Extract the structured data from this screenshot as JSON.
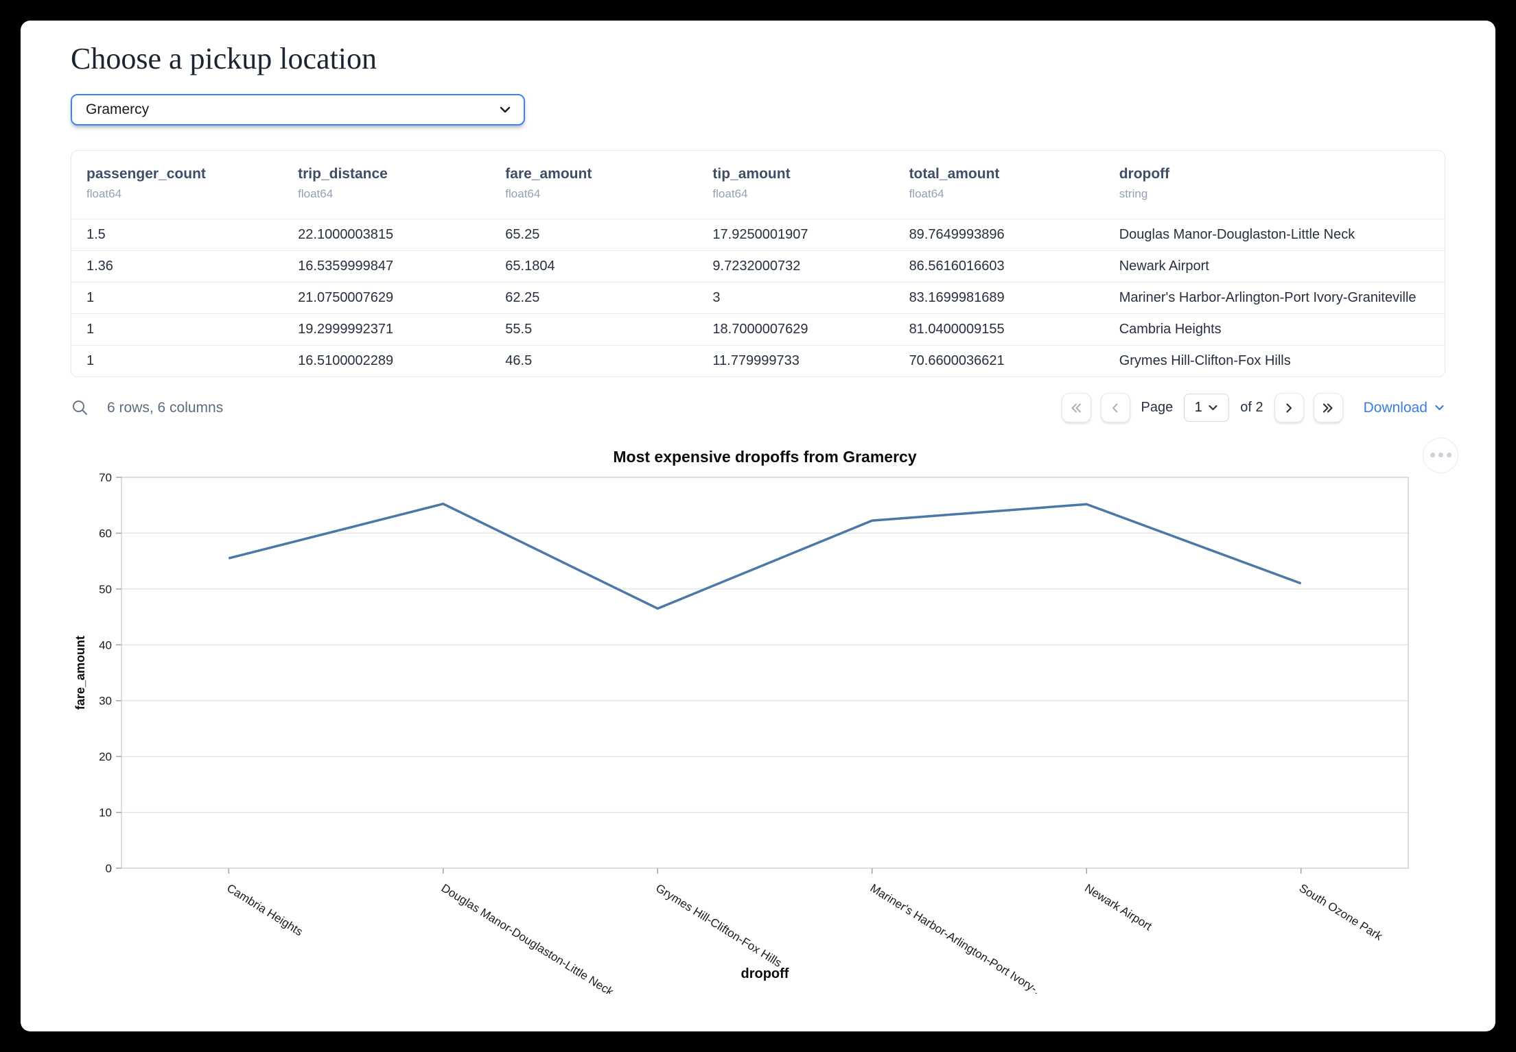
{
  "header": {
    "title": "Choose a pickup location"
  },
  "pickup_select": {
    "value": "Gramercy"
  },
  "table": {
    "columns": [
      {
        "name": "passenger_count",
        "dtype": "float64"
      },
      {
        "name": "trip_distance",
        "dtype": "float64"
      },
      {
        "name": "fare_amount",
        "dtype": "float64"
      },
      {
        "name": "tip_amount",
        "dtype": "float64"
      },
      {
        "name": "total_amount",
        "dtype": "float64"
      },
      {
        "name": "dropoff",
        "dtype": "string"
      }
    ],
    "rows": [
      [
        "1.5",
        "22.1000003815",
        "65.25",
        "17.9250001907",
        "89.7649993896",
        "Douglas Manor-Douglaston-Little Neck"
      ],
      [
        "1.36",
        "16.5359999847",
        "65.1804",
        "9.7232000732",
        "86.5616016603",
        "Newark Airport"
      ],
      [
        "1",
        "21.0750007629",
        "62.25",
        "3",
        "83.1699981689",
        "Mariner's Harbor-Arlington-Port Ivory-Graniteville"
      ],
      [
        "1",
        "19.2999992371",
        "55.5",
        "18.7000007629",
        "81.0400009155",
        "Cambria Heights"
      ],
      [
        "1",
        "16.5100002289",
        "46.5",
        "11.779999733",
        "70.6600036621",
        "Grymes Hill-Clifton-Fox Hills"
      ]
    ],
    "summary": "6 rows, 6 columns"
  },
  "pagination": {
    "page_label": "Page",
    "current_page": "1",
    "of_text": "of 2",
    "download_label": "Download"
  },
  "colors": {
    "accent_blue": "#3e83f0",
    "link_blue": "#3a7ce0",
    "line_blue": "#4c78a8"
  },
  "chart_data": {
    "type": "line",
    "title": "Most expensive dropoffs from Gramercy",
    "xlabel": "dropoff",
    "ylabel": "fare_amount",
    "categories": [
      "Cambria Heights",
      "Douglas Manor-Douglaston-Little Neck",
      "Grymes Hill-Clifton-Fox Hills",
      "Mariner's Harbor-Arlington-Port Ivory-Graniteville",
      "Newark Airport",
      "South Ozone Park"
    ],
    "axis_labels": [
      "Cambria Heights",
      "Douglas Manor-Douglaston-Little Neck",
      "Grymes Hill-Clifton-Fox Hills",
      "Mariner's Harbor-Arlington-Port Ivory-…",
      "Newark Airport",
      "South Ozone Park"
    ],
    "values": [
      55.5,
      65.25,
      46.5,
      62.25,
      65.1804,
      51
    ],
    "ylim": [
      0,
      70
    ],
    "ytick_step": 10,
    "grid": true,
    "legend": "none",
    "line_color": "#4c78a8"
  }
}
